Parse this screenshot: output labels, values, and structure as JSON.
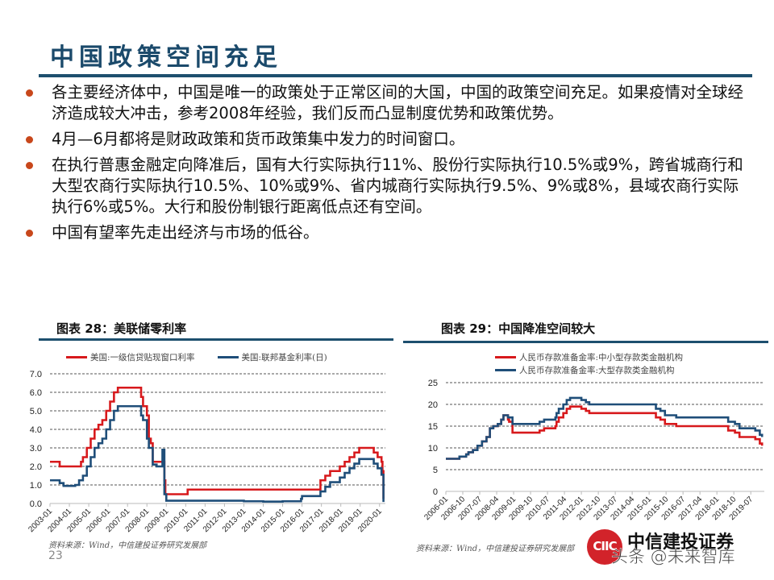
{
  "slide": {
    "title": "中国政策空间充足",
    "page_number": "23",
    "bullets": [
      "各主要经济体中，中国是唯一的政策处于正常区间的大国，中国的政策空间充足。如果疫情对全球经济造成较大冲击，参考2008年经验，我们反而凸显制度优势和政策优势。",
      "4月—6月都将是财政政策和货币政策集中发力的时间窗口。",
      "在执行普惠金融定向降准后，国有大行实际执行11%、股份行实际执行10.5%或9%，跨省城商行和大型农商行实际执行10.5%、10%或9%、省内城商行实际执行9.5%、9%或8%，县域农商行实际执行6%或5%。大行和股份制银行距离低点还有空间。",
      "中国有望率先走出经济与市场的低谷。"
    ],
    "bullet_color": "#c8471b",
    "title_color": "#1b4a6b",
    "logo": {
      "brand": "中信建投证券",
      "mark": "CIIC",
      "watermark": "头条 @未来智库"
    }
  },
  "chart_data": [
    {
      "type": "line",
      "title": "图表 28：美联储零利率",
      "source": "资料来源：Wind，中信建投证券研究发展部",
      "xlabel": "",
      "ylabel": "",
      "ylim": [
        0,
        7
      ],
      "yticks": [
        "0.0",
        "1.0",
        "2.0",
        "3.0",
        "4.0",
        "5.0",
        "6.0",
        "7.0"
      ],
      "categories": [
        "2003-01",
        "2004-01",
        "2005-01",
        "2006-01",
        "2007-01",
        "2008-01",
        "2009-01",
        "2010-01",
        "2011-01",
        "2012-01",
        "2013-01",
        "2014-01",
        "2015-01",
        "2016-01",
        "2017-01",
        "2018-01",
        "2019-01",
        "2020-01"
      ],
      "grid": "horizontal-dashed",
      "legend_position": "top",
      "series": [
        {
          "name": "美国:一级信贷贴现窗口利率",
          "color": "#d7191c",
          "x": [
            2003.0,
            2003.5,
            2003.5,
            2004.5,
            2004.6,
            2004.7,
            2004.9,
            2005.1,
            2005.3,
            2005.5,
            2005.7,
            2005.9,
            2006.1,
            2006.3,
            2006.5,
            2007.6,
            2007.7,
            2007.8,
            2008.0,
            2008.1,
            2008.2,
            2008.3,
            2008.5,
            2008.9,
            2008.95,
            2009.5,
            2010.1,
            2016.0,
            2016.95,
            2017.2,
            2017.45,
            2017.95,
            2018.2,
            2018.45,
            2018.7,
            2018.95,
            2019.6,
            2019.7,
            2019.9,
            2020.1,
            2020.15,
            2020.2
          ],
          "y": [
            2.25,
            2.25,
            2.0,
            2.0,
            2.25,
            2.5,
            3.0,
            3.5,
            4.0,
            4.25,
            4.5,
            5.0,
            5.5,
            6.0,
            6.25,
            6.25,
            5.75,
            5.25,
            4.75,
            3.5,
            3.25,
            2.25,
            2.25,
            1.25,
            0.5,
            0.5,
            0.75,
            0.75,
            1.25,
            1.5,
            1.75,
            2.0,
            2.25,
            2.5,
            2.75,
            3.0,
            3.0,
            2.75,
            2.5,
            2.25,
            1.75,
            0.25
          ]
        },
        {
          "name": "美国:联邦基金利率(日)",
          "color": "#1f4e79",
          "x": [
            2003.0,
            2003.5,
            2003.7,
            2004.3,
            2004.5,
            2004.7,
            2004.9,
            2005.1,
            2005.3,
            2005.5,
            2005.7,
            2005.9,
            2006.1,
            2006.3,
            2006.5,
            2007.6,
            2007.7,
            2007.8,
            2008.0,
            2008.1,
            2008.3,
            2008.5,
            2008.7,
            2008.8,
            2008.9,
            2009.0,
            2010.0,
            2011.0,
            2012.0,
            2013.0,
            2014.0,
            2015.0,
            2015.95,
            2016.0,
            2016.95,
            2017.2,
            2017.45,
            2017.95,
            2018.2,
            2018.45,
            2018.7,
            2018.95,
            2019.55,
            2019.7,
            2019.9,
            2020.1,
            2020.15,
            2020.2
          ],
          "y": [
            1.25,
            1.1,
            0.95,
            1.0,
            1.25,
            1.5,
            2.0,
            2.5,
            3.0,
            3.25,
            3.5,
            4.0,
            4.5,
            5.0,
            5.25,
            5.25,
            4.75,
            4.5,
            3.5,
            3.0,
            2.1,
            2.0,
            2.0,
            2.9,
            0.5,
            0.15,
            0.15,
            0.15,
            0.15,
            0.12,
            0.1,
            0.12,
            0.25,
            0.4,
            0.65,
            0.9,
            1.15,
            1.4,
            1.65,
            1.9,
            2.15,
            2.4,
            2.4,
            2.15,
            1.9,
            1.55,
            1.55,
            0.08
          ]
        }
      ]
    },
    {
      "type": "line",
      "title": "图表 29：中国降准空间较大",
      "source": "资料来源：Wind，中信建投证券研究发展部",
      "xlabel": "",
      "ylabel": "",
      "ylim": [
        0,
        25
      ],
      "yticks": [
        "0",
        "5",
        "10",
        "15",
        "20",
        "25"
      ],
      "categories": [
        "2006-01",
        "2006-10",
        "2007-07",
        "2008-04",
        "2009-01",
        "2009-10",
        "2010-07",
        "2011-04",
        "2012-01",
        "2012-10",
        "2013-07",
        "2014-04",
        "2015-01",
        "2015-10",
        "2016-07",
        "2017-04",
        "2018-01",
        "2018-10",
        "2019-07"
      ],
      "grid": "horizontal-dashed",
      "legend_position": "top",
      "series": [
        {
          "name": "人民币存款准备金率:中小型存款类金融机构",
          "color": "#d7191c",
          "x": [
            2006.0,
            2006.5,
            2006.6,
            2006.9,
            2007.0,
            2007.2,
            2007.4,
            2007.6,
            2007.8,
            2007.95,
            2008.1,
            2008.3,
            2008.45,
            2008.55,
            2008.7,
            2008.75,
            2008.8,
            2008.95,
            2010.0,
            2010.15,
            2010.35,
            2010.85,
            2010.9,
            2011.0,
            2011.2,
            2011.35,
            2011.5,
            2011.9,
            2012.0,
            2012.2,
            2012.35,
            2015.1,
            2015.3,
            2015.5,
            2015.7,
            2016.2,
            2018.3,
            2018.5,
            2018.8,
            2019.0,
            2019.7,
            2019.9,
            2020.0
          ],
          "y": [
            7.5,
            7.5,
            8.0,
            8.5,
            9.0,
            9.5,
            10.5,
            11.5,
            12.5,
            14.5,
            15.0,
            15.5,
            16.5,
            17.5,
            17.5,
            16.5,
            16.0,
            13.5,
            13.5,
            14.0,
            14.5,
            15.0,
            16.0,
            17.0,
            18.0,
            19.0,
            19.5,
            19.5,
            19.0,
            18.5,
            18.0,
            18.0,
            17.0,
            16.5,
            15.5,
            15.0,
            15.0,
            14.0,
            13.5,
            12.5,
            12.0,
            11.0,
            10.5
          ]
        },
        {
          "name": "人民币存款准备金率:大型存款类金融机构",
          "color": "#1f4e79",
          "x": [
            2006.0,
            2006.5,
            2006.6,
            2006.9,
            2007.0,
            2007.2,
            2007.4,
            2007.6,
            2007.8,
            2007.95,
            2008.1,
            2008.3,
            2008.45,
            2008.55,
            2008.7,
            2008.75,
            2008.8,
            2008.95,
            2010.0,
            2010.15,
            2010.35,
            2010.85,
            2010.9,
            2011.0,
            2011.2,
            2011.35,
            2011.5,
            2011.9,
            2012.0,
            2012.2,
            2012.35,
            2015.1,
            2015.3,
            2015.5,
            2015.7,
            2016.2,
            2018.3,
            2018.5,
            2018.8,
            2019.0,
            2019.7,
            2019.9,
            2020.0
          ],
          "y": [
            7.5,
            7.5,
            8.0,
            8.5,
            9.0,
            9.5,
            10.5,
            11.5,
            12.5,
            14.5,
            15.0,
            15.5,
            16.5,
            17.5,
            17.5,
            17.0,
            17.0,
            15.5,
            15.5,
            16.0,
            16.5,
            17.0,
            18.0,
            19.0,
            20.0,
            21.0,
            21.5,
            21.5,
            21.0,
            20.5,
            20.0,
            20.0,
            19.0,
            18.5,
            17.5,
            17.0,
            17.0,
            16.0,
            15.5,
            14.5,
            14.0,
            13.0,
            12.5
          ]
        }
      ]
    }
  ]
}
